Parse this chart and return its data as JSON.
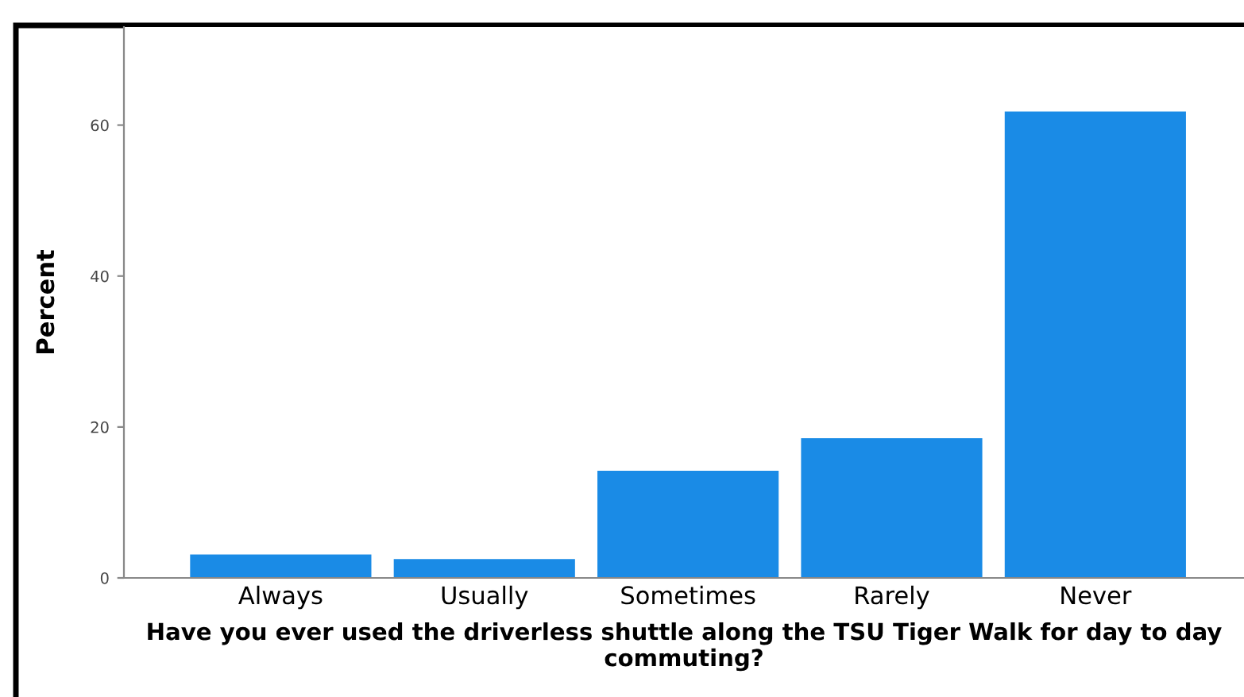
{
  "chart_data": {
    "type": "bar",
    "xlabel": "Have you ever used the driverless shuttle along the TSU Tiger Walk for day to day commuting?",
    "ylabel": "Percent",
    "categories": [
      "Always",
      "Usually",
      "Sometimes",
      "Rarely",
      "Never"
    ],
    "values": [
      3.1,
      2.5,
      14.2,
      18.5,
      61.8
    ],
    "color": "#1a8be6",
    "ylim": [
      0,
      73
    ],
    "yticks": [
      0,
      20,
      40,
      60
    ],
    "grid": false
  }
}
